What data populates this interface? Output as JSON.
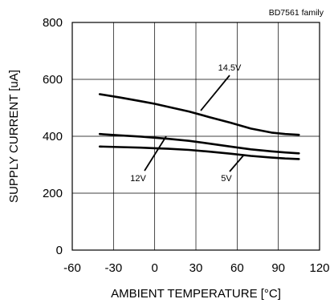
{
  "chart_data": {
    "type": "line",
    "family_label": "BD7561 family",
    "xlabel": "AMBIENT TEMPERATURE [°C]",
    "ylabel": "SUPPLY CURRENT [uA]",
    "xlim": [
      -60,
      120
    ],
    "ylim": [
      0,
      800
    ],
    "xticks": [
      -60,
      -30,
      0,
      30,
      60,
      90,
      120
    ],
    "yticks": [
      0,
      200,
      400,
      600,
      800
    ],
    "x_tick_labels": [
      "-60",
      "-30",
      "0",
      "30",
      "60",
      "90",
      "120"
    ],
    "y_tick_labels": [
      "0",
      "200",
      "400",
      "600",
      "800"
    ],
    "grid": true,
    "line_color": "#000000",
    "series": [
      {
        "name": "14.5V",
        "x": [
          -40,
          -25,
          -10,
          0,
          10,
          25,
          40,
          55,
          70,
          85,
          95,
          105
        ],
        "y": [
          548,
          536,
          523,
          514,
          503,
          487,
          467,
          448,
          427,
          413,
          408,
          405
        ]
      },
      {
        "name": "12V",
        "x": [
          -40,
          -25,
          -10,
          0,
          10,
          25,
          40,
          55,
          70,
          85,
          95,
          105
        ],
        "y": [
          408,
          403,
          399,
          395,
          391,
          384,
          374,
          364,
          354,
          347,
          343,
          340
        ]
      },
      {
        "name": "5V",
        "x": [
          -40,
          -25,
          -10,
          0,
          10,
          25,
          40,
          55,
          70,
          85,
          95,
          105
        ],
        "y": [
          364,
          362,
          360,
          358,
          356,
          352,
          346,
          339,
          331,
          325,
          322,
          320
        ]
      }
    ],
    "annotations": [
      {
        "label": "14.5V",
        "series": "14.5V"
      },
      {
        "label": "12V",
        "series": "12V"
      },
      {
        "label": "5V",
        "series": "5V"
      }
    ]
  }
}
